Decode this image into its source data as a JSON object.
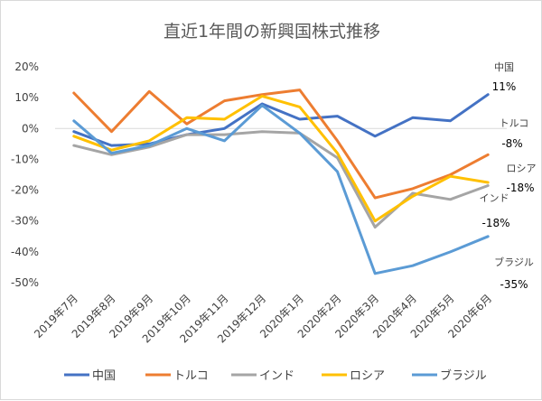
{
  "chart_data": {
    "type": "line",
    "title": "直近1年間の新興国株式推移",
    "ylim": [
      -50,
      20
    ],
    "y_ticks": [
      "20%",
      "10%",
      "0%",
      "-10%",
      "-20%",
      "-30%",
      "-40%",
      "-50%"
    ],
    "categories": [
      "2019年7月",
      "2019年8月",
      "2019年9月",
      "2019年10月",
      "2019年11月",
      "2019年12月",
      "2020年1月",
      "2020年2月",
      "2020年3月",
      "2020年4月",
      "2020年5月",
      "2020年6月"
    ],
    "series": [
      {
        "name": "中国",
        "color": "#4472c4",
        "values": [
          -1,
          -5.5,
          -5,
          -2,
          0,
          8,
          3,
          4,
          -2.5,
          3.5,
          2.5,
          11
        ]
      },
      {
        "name": "トルコ",
        "color": "#ed7d31",
        "values": [
          11.5,
          -1,
          12,
          1.5,
          9,
          11,
          12.5,
          -4,
          -22.5,
          -19.5,
          -15,
          -8.5
        ]
      },
      {
        "name": "インド",
        "color": "#a5a5a5",
        "values": [
          -5.5,
          -8.5,
          -6,
          -2,
          -2,
          -1,
          -1.5,
          -9.5,
          -32,
          -21,
          -23,
          -18.5
        ]
      },
      {
        "name": "ロシア",
        "color": "#ffc000",
        "values": [
          -2.5,
          -7,
          -4,
          3.5,
          3,
          10.5,
          7,
          -8,
          -30,
          -22,
          -15.5,
          -17.5
        ]
      },
      {
        "name": "ブラジル",
        "color": "#5b9bd5",
        "values": [
          2.5,
          -8,
          -5.5,
          0,
          -4,
          7.5,
          -1.5,
          -14,
          -47,
          -44.5,
          -40,
          -35
        ]
      }
    ],
    "annotations": [
      {
        "name": "中国",
        "value": "11%"
      },
      {
        "name": "トルコ",
        "value": "-8%"
      },
      {
        "name": "ロシア",
        "value": "-18%"
      },
      {
        "name": "インド",
        "value": "-18%"
      },
      {
        "name": "ブラジル",
        "value": "-35%"
      }
    ],
    "legend_position": "bottom",
    "grid": false
  }
}
